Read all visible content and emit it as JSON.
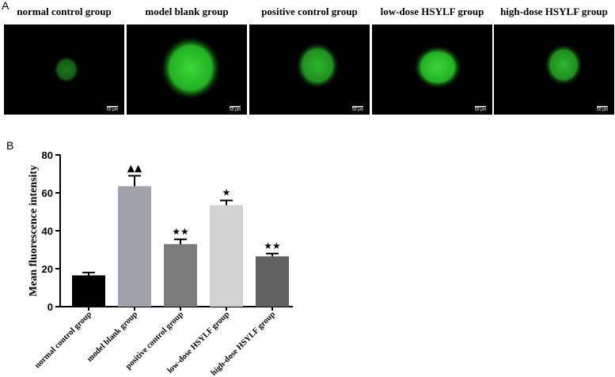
{
  "panel_a": {
    "label": "A",
    "images": [
      {
        "title": "normal control group",
        "scale_bar": "50 μm"
      },
      {
        "title": "model blank group",
        "scale_bar": "50 μm"
      },
      {
        "title": "positive control group",
        "scale_bar": "50 μm"
      },
      {
        "title": "low-dose HSYLF group",
        "scale_bar": "50 μm"
      },
      {
        "title": "high-dose HSYLF group",
        "scale_bar": "50 μm"
      }
    ]
  },
  "chart_data": {
    "type": "bar",
    "panel_label": "B",
    "y_label": "Mean fluorescence intensity",
    "categories": [
      "normal control group",
      "model blank group",
      "positive control group",
      "low-dose HSYLF group",
      "high-dose HSYLF group"
    ],
    "values": [
      16.5,
      63.5,
      33,
      53.5,
      26.5
    ],
    "errors": [
      1.5,
      5.5,
      2.5,
      2.5,
      1.5
    ],
    "annotations": [
      null,
      "▲▲",
      "★★",
      "★",
      "★★"
    ],
    "colors": [
      "#000000",
      "#a2a2aa",
      "#7b7b7b",
      "#d2d2d2",
      "#626262"
    ],
    "ylim": [
      0,
      80
    ],
    "yticks": [
      0,
      20,
      40,
      60,
      80
    ]
  }
}
